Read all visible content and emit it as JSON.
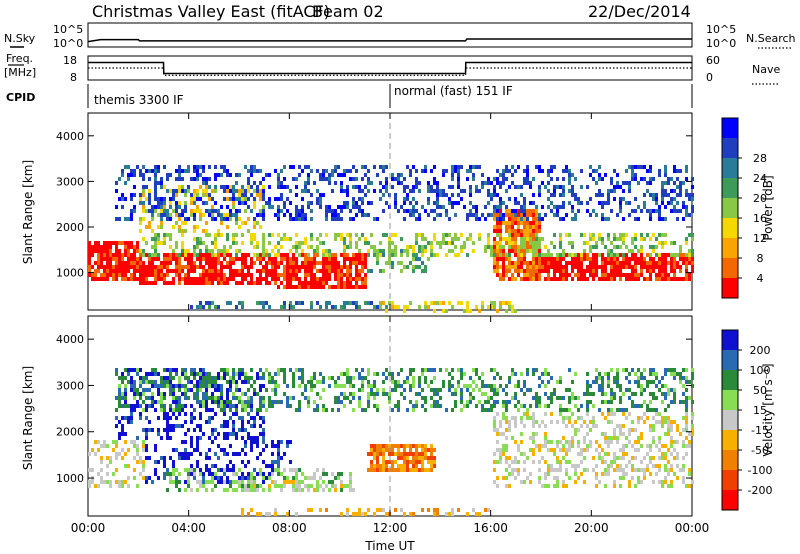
{
  "header": {
    "title": "Christmas Valley East (fitACF)",
    "beam": "Beam 02",
    "date": "22/Dec/2014"
  },
  "status_panels": {
    "nsky_label": "N.Sky",
    "nsky_ticks": [
      "10^5",
      "10^0"
    ],
    "nsearch_label": "N.Search",
    "freq_label_lines": [
      "Freq.",
      "[MHz]"
    ],
    "freq_ticks": [
      "18",
      "8"
    ],
    "nave_ticks": [
      "60",
      "0"
    ],
    "nave_label": "Nave",
    "cpid_label": "CPID",
    "cpid_entries": [
      {
        "label": "themis 3300 IF",
        "start_hour": 0
      },
      {
        "label": "normal (fast) 151 IF",
        "start_hour": 12
      }
    ],
    "nsky_series": {
      "hours": [
        0,
        0.5,
        2,
        2.05,
        3,
        6,
        9,
        12,
        15,
        15.05,
        24
      ],
      "log10_values": [
        1.0,
        1.45,
        1.45,
        1.15,
        1.15,
        1.15,
        1.15,
        1.15,
        1.15,
        1.6,
        1.6
      ]
    },
    "freq_series": {
      "hours": [
        0,
        3,
        3.01,
        15,
        15.01,
        24
      ],
      "mhz": [
        15.5,
        15.5,
        10.5,
        10.5,
        15.5,
        15.5
      ]
    },
    "nave_series": {
      "hours": [
        0,
        3,
        3.01,
        15,
        15.01,
        24
      ],
      "values": [
        30,
        30,
        10,
        10,
        30,
        30
      ]
    }
  },
  "chart_data": [
    {
      "type": "heatmap",
      "name": "Power",
      "xlabel": "Time UT",
      "ylabel": "Slant Range [km]",
      "xlim": [
        0,
        24
      ],
      "ylim": [
        180,
        4500
      ],
      "x_ticks": [
        "00:00",
        "04:00",
        "08:00",
        "12:00",
        "16:00",
        "20:00",
        "00:00"
      ],
      "y_ticks": [
        1000,
        2000,
        3000,
        4000
      ],
      "colorbar": {
        "label": "Power [dB]",
        "ticks": [
          "4",
          "8",
          "12",
          "16",
          "20",
          "24",
          "28"
        ],
        "colors": [
          "#0000ff",
          "#1f3fbf",
          "#2a7a9a",
          "#3e9a58",
          "#88c846",
          "#f5d800",
          "#f9a400",
          "#f46800",
          "#ff0000"
        ]
      },
      "regions": [
        {
          "x": [
            0.0,
            2.0
          ],
          "y": [
            850,
            1700
          ],
          "level": 8
        },
        {
          "x": [
            2.0,
            7.5
          ],
          "y": [
            750,
            1450
          ],
          "level": 8
        },
        {
          "x": [
            7.5,
            11.0
          ],
          "y": [
            700,
            1450
          ],
          "level": 8
        },
        {
          "x": [
            11.0,
            13.5
          ],
          "y": [
            1050,
            1550
          ],
          "level": 3
        },
        {
          "x": [
            16.0,
            18.0
          ],
          "y": [
            900,
            2400
          ],
          "level": 7
        },
        {
          "x": [
            18.0,
            24.0
          ],
          "y": [
            850,
            1500
          ],
          "level": 8
        },
        {
          "x": [
            2.0,
            24.0
          ],
          "y": [
            1400,
            1950
          ],
          "level": 4
        },
        {
          "x": [
            2.0,
            7.0
          ],
          "y": [
            1900,
            3000
          ],
          "level": 5
        },
        {
          "x": [
            1.0,
            24.0
          ],
          "y": [
            2200,
            3400
          ],
          "level": 1
        },
        {
          "x": [
            4.0,
            12.0
          ],
          "y": [
            220,
            420
          ],
          "level": 2
        },
        {
          "x": [
            11.5,
            17.0
          ],
          "y": [
            180,
            400
          ],
          "level": 5
        }
      ]
    },
    {
      "type": "heatmap",
      "name": "Velocity",
      "xlabel": "Time UT",
      "ylabel": "Slant Range [km]",
      "xlim": [
        0,
        24
      ],
      "ylim": [
        180,
        4500
      ],
      "x_ticks": [
        "00:00",
        "04:00",
        "08:00",
        "12:00",
        "16:00",
        "20:00",
        "00:00"
      ],
      "y_ticks": [
        1000,
        2000,
        3000,
        4000
      ],
      "colorbar": {
        "label": "Velocity [m s⁻¹]",
        "ticks": [
          "200",
          "100",
          "50",
          "15",
          "-15",
          "-50",
          "-100",
          "-200"
        ],
        "colors": [
          "#1010d0",
          "#2a6ab0",
          "#2a8a3a",
          "#88dd55",
          "#c8c8c8",
          "#f5b000",
          "#f08000",
          "#f04000",
          "#ff0000"
        ]
      },
      "regions": [
        {
          "x": [
            0.0,
            2.2
          ],
          "y": [
            850,
            1900
          ],
          "level": 4
        },
        {
          "x": [
            2.2,
            8.0
          ],
          "y": [
            950,
            1900
          ],
          "level": 0
        },
        {
          "x": [
            3.0,
            10.5
          ],
          "y": [
            750,
            1250
          ],
          "level": 3
        },
        {
          "x": [
            6.0,
            10.5
          ],
          "y": [
            700,
            1000
          ],
          "level": 4
        },
        {
          "x": [
            11.0,
            13.8
          ],
          "y": [
            1150,
            1800
          ],
          "level": 6
        },
        {
          "x": [
            16.0,
            24.0
          ],
          "y": [
            850,
            2500
          ],
          "level": 4
        },
        {
          "x": [
            1.0,
            7.0
          ],
          "y": [
            1900,
            3400
          ],
          "level": 0
        },
        {
          "x": [
            1.0,
            24.0
          ],
          "y": [
            2500,
            3400
          ],
          "level": 2
        },
        {
          "x": [
            6.0,
            16.0
          ],
          "y": [
            180,
            420
          ],
          "level": 5
        }
      ]
    }
  ]
}
